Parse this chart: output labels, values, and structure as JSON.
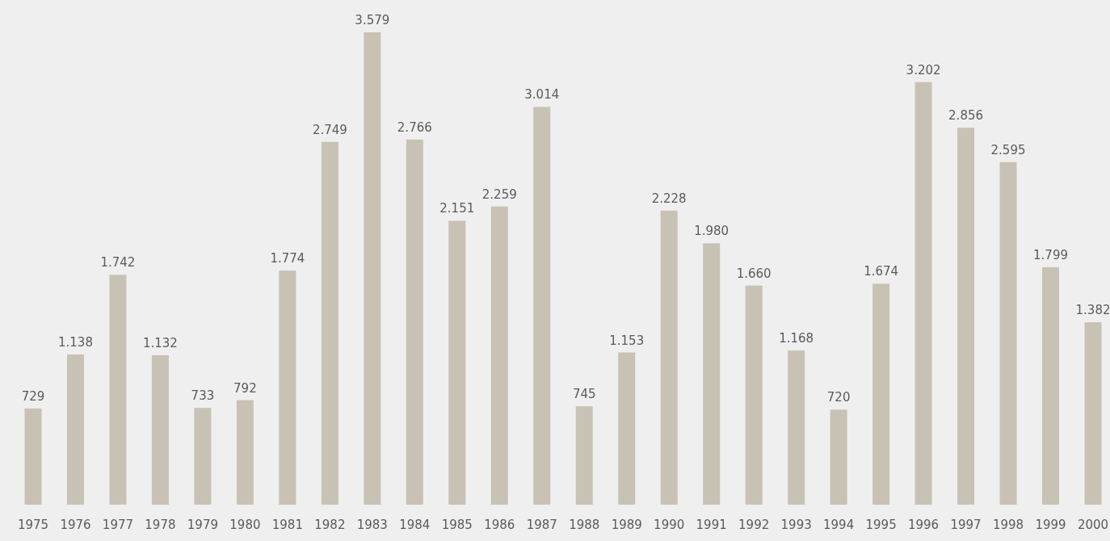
{
  "chart_data": {
    "type": "bar",
    "categories": [
      "1975",
      "1976",
      "1977",
      "1978",
      "1979",
      "1980",
      "1981",
      "1982",
      "1983",
      "1984",
      "1985",
      "1986",
      "1987",
      "1988",
      "1989",
      "1990",
      "1991",
      "1992",
      "1993",
      "1994",
      "1995",
      "1996",
      "1997",
      "1998",
      "1999",
      "2000"
    ],
    "values": [
      729,
      1138,
      1742,
      1132,
      733,
      792,
      1774,
      2749,
      3579,
      2766,
      2151,
      2259,
      3014,
      745,
      1153,
      2228,
      1980,
      1660,
      1168,
      720,
      1674,
      3202,
      2856,
      2595,
      1799,
      1382
    ],
    "value_labels": [
      "729",
      "1.138",
      "1.742",
      "1.132",
      "733",
      "792",
      "1.774",
      "2.749",
      "3.579",
      "2.766",
      "2.151",
      "2.259",
      "3.014",
      "745",
      "1.153",
      "2.228",
      "1.980",
      "1.660",
      "1.168",
      "720",
      "1.674",
      "3.202",
      "2.856",
      "2.595",
      "1.799",
      "1.382"
    ],
    "color": "#c8c2b4"
  }
}
